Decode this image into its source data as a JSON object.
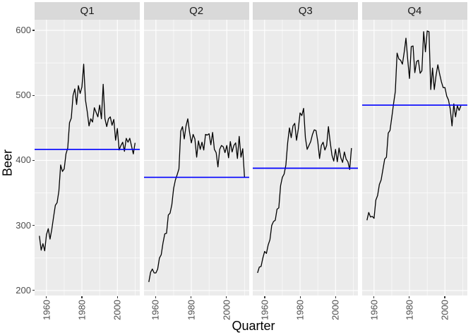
{
  "chart_data": {
    "type": "line",
    "title": "",
    "xlabel": "Quarter",
    "ylabel": "Beer",
    "grid": "on",
    "legend": "none",
    "x_ticks": [
      1960,
      1980,
      2000
    ],
    "x_minor_ticks": [
      1970,
      1990,
      2010
    ],
    "y_ticks": [
      200,
      300,
      400,
      500,
      600
    ],
    "y_minor_ticks": [
      250,
      350,
      450,
      550
    ],
    "xlim": [
      1953.3,
      2012.7
    ],
    "ylim": [
      192,
      616
    ],
    "colors": {
      "panel_background": "#EBEBEB",
      "strip_background": "#D9D9D9",
      "grid_major": "#FFFFFF",
      "grid_minor": "#FFFFFF",
      "series_line": "#000000",
      "mean_line": "#0000FF",
      "tick_text": "#4D4D4D",
      "axis_title_text": "#000000",
      "strip_text": "#1A1A1A"
    },
    "facets": [
      {
        "label": "Q1",
        "start_year": 1956,
        "end_year": 2010,
        "mean_line": 417,
        "values": [
          284,
          262,
          272,
          261,
          286,
          295,
          279,
          294,
          313,
          331,
          335,
          353,
          393,
          383,
          387,
          410,
          419,
          458,
          465,
          500,
          510,
          486,
          515,
          503,
          513,
          548,
          493,
          475,
          453,
          464,
          459,
          481,
          474,
          467,
          485,
          464,
          517,
          464,
          452,
          464,
          467,
          454,
          463,
          431,
          449,
          416,
          423,
          428,
          414,
          434,
          428,
          434,
          422,
          410,
          427
        ]
      },
      {
        "label": "Q2",
        "start_year": 1956,
        "end_year": 2010,
        "mean_line": 374,
        "values": [
          213,
          228,
          233,
          227,
          227,
          233,
          250,
          255,
          273,
          287,
          288,
          316,
          319,
          332,
          357,
          370,
          378,
          387,
          445,
          452,
          433,
          453,
          464,
          443,
          427,
          440,
          433,
          405,
          430,
          417,
          428,
          416,
          440,
          439,
          441,
          424,
          443,
          417,
          412,
          390,
          417,
          423,
          421,
          412,
          423,
          404,
          429,
          413,
          423,
          427,
          403,
          437,
          405,
          418,
          374
        ]
      },
      {
        "label": "Q3",
        "start_year": 1956,
        "end_year": 2009,
        "mean_line": 388,
        "values": [
          227,
          236,
          237,
          250,
          260,
          257,
          270,
          278,
          300,
          306,
          308,
          325,
          327,
          361,
          374,
          379,
          393,
          427,
          450,
          435,
          453,
          457,
          431,
          448,
          473,
          469,
          480,
          435,
          417,
          423,
          429,
          440,
          447,
          446,
          429,
          403,
          423,
          428,
          416,
          423,
          452,
          428,
          408,
          399,
          417,
          398,
          419,
          404,
          397,
          413,
          402,
          398,
          386,
          419
        ]
      },
      {
        "label": "Q4",
        "start_year": 1956,
        "end_year": 2009,
        "mean_line": 485,
        "values": [
          308,
          320,
          313,
          314,
          311,
          339,
          346,
          363,
          370,
          386,
          402,
          405,
          442,
          446,
          466,
          487,
          506,
          565,
          556,
          554,
          548,
          566,
          588,
          555,
          526,
          575,
          576,
          535,
          552,
          554,
          534,
          538,
          598,
          567,
          599,
          598,
          509,
          542,
          509,
          531,
          547,
          533,
          521,
          512,
          512,
          499,
          493,
          479,
          453,
          487,
          467,
          484,
          477,
          484
        ]
      }
    ]
  }
}
